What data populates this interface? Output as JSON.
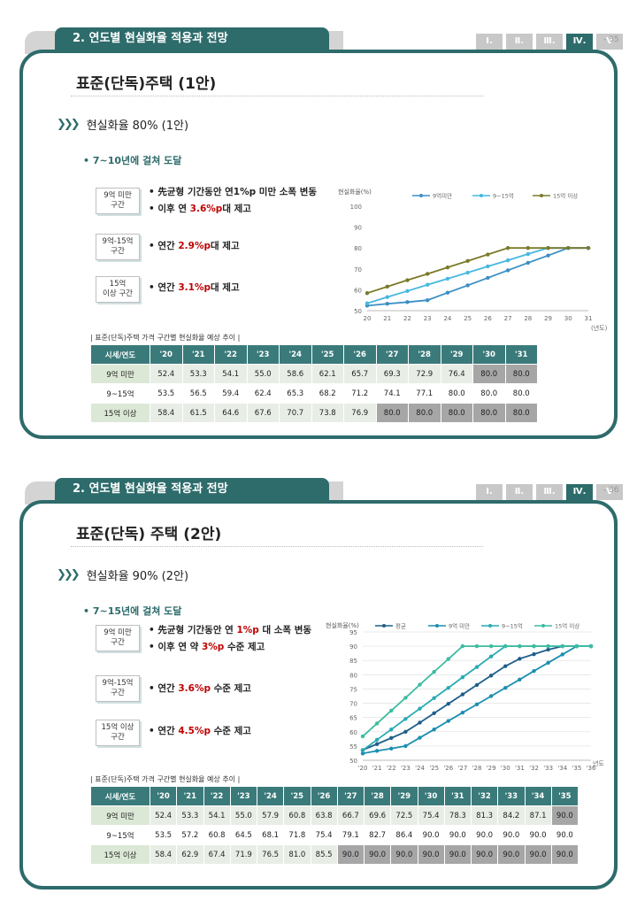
{
  "pages": [
    {
      "header": "2. 연도별 현실화율 적용과 전망",
      "roman_tabs": [
        "Ⅰ.",
        "Ⅱ.",
        "Ⅲ.",
        "Ⅳ.",
        "Ⅴ"
      ],
      "active_tab": 3,
      "page_number": "- 35",
      "title": "표준(단독)주택 (1안)",
      "subtitle": "현실화율 80% (1안)",
      "bullet": "• 7~10년에 걸쳐 도달",
      "groups": [
        {
          "tag": [
            "9억 미만",
            "구간"
          ],
          "lines": [
            [
              {
                "t": "• 先균형 기간동안 연1%p 미만 소폭 변동",
                "red": false
              }
            ],
            [
              {
                "t": "• 이후 연 ",
                "red": false
              },
              {
                "t": "3.6%p",
                "red": true
              },
              {
                "t": "대 제고",
                "red": false
              }
            ]
          ]
        },
        {
          "tag": [
            "9억-15억",
            "구간"
          ],
          "lines": [
            [
              {
                "t": "• 연간 ",
                "red": false
              },
              {
                "t": "2.9%p",
                "red": true
              },
              {
                "t": "대 제고",
                "red": false
              }
            ]
          ]
        },
        {
          "tag": [
            "15억",
            "이상 구간"
          ],
          "lines": [
            [
              {
                "t": "• 연간 ",
                "red": false
              },
              {
                "t": "3.1%p",
                "red": true
              },
              {
                "t": "대 제고",
                "red": false
              }
            ]
          ]
        }
      ],
      "table_caption": "| 표준(단독)주택 가격 구간별 현실화율 예상 추이 |",
      "table": {
        "header": [
          "시세/연도",
          "'20",
          "'21",
          "'22",
          "'23",
          "'24",
          "'25",
          "'26",
          "'27",
          "'28",
          "'29",
          "'30",
          "'31"
        ],
        "rows": [
          {
            "label": "9억 미만",
            "values": [
              "52.4",
              "53.3",
              "54.1",
              "55.0",
              "58.6",
              "62.1",
              "65.7",
              "69.3",
              "72.9",
              "76.4",
              "80.0",
              "80.0"
            ],
            "sat_from": 10
          },
          {
            "label": "9~15억",
            "values": [
              "53.5",
              "56.5",
              "59.4",
              "62.4",
              "65.3",
              "68.2",
              "71.2",
              "74.1",
              "77.1",
              "80.0",
              "80.0",
              "80.0"
            ],
            "sat_from": 9
          },
          {
            "label": "15억 이상",
            "values": [
              "58.4",
              "61.5",
              "64.6",
              "67.6",
              "70.7",
              "73.8",
              "76.9",
              "80.0",
              "80.0",
              "80.0",
              "80.0",
              "80.0"
            ],
            "sat_from": 7
          }
        ]
      },
      "chart_data": {
        "type": "line",
        "ylabel": "현실화율(%)",
        "xlabel": "(년도)",
        "x": [
          "20",
          "21",
          "22",
          "23",
          "24",
          "25",
          "26",
          "27",
          "28",
          "29",
          "30",
          "31"
        ],
        "ylim": [
          50,
          100
        ],
        "yticks": [
          50,
          60,
          70,
          80,
          90,
          100
        ],
        "legend_position": "top",
        "series": [
          {
            "name": "9억미만",
            "color": "#3b8fc4",
            "values": [
              52.4,
              53.3,
              54.1,
              55.0,
              58.6,
              62.1,
              65.7,
              69.3,
              72.9,
              76.4,
              80.0,
              80.0
            ]
          },
          {
            "name": "9~15억",
            "color": "#47b8e0",
            "values": [
              53.5,
              56.5,
              59.4,
              62.4,
              65.3,
              68.2,
              71.2,
              74.1,
              77.1,
              80.0,
              80.0,
              80.0
            ]
          },
          {
            "name": "15억 이상",
            "color": "#7a7a2a",
            "values": [
              58.4,
              61.5,
              64.6,
              67.6,
              70.7,
              73.8,
              76.9,
              80.0,
              80.0,
              80.0,
              80.0,
              80.0
            ]
          }
        ]
      }
    },
    {
      "header": "2. 연도별 현실화율 적용과 전망",
      "roman_tabs": [
        "Ⅰ.",
        "Ⅱ.",
        "Ⅲ.",
        "Ⅳ.",
        "Ⅴ"
      ],
      "active_tab": 3,
      "page_number": "- 36",
      "title": "표준(단독) 주택 (2안)",
      "subtitle": "현실화율 90% (2안)",
      "bullet": "• 7~15년에 걸쳐 도달",
      "groups": [
        {
          "tag": [
            "9억 미만",
            "구간"
          ],
          "lines": [
            [
              {
                "t": "• 先균형 기간동안 연 ",
                "red": false
              },
              {
                "t": "1%p",
                "red": true
              },
              {
                "t": " 대 소폭 변동",
                "red": false
              }
            ],
            [
              {
                "t": "• 이후 연 약 ",
                "red": false
              },
              {
                "t": "3%p",
                "red": true
              },
              {
                "t": " 수준 제고",
                "red": false
              }
            ]
          ]
        },
        {
          "tag": [
            "9억-15억",
            "구간"
          ],
          "lines": [
            [
              {
                "t": "• 연간 ",
                "red": false
              },
              {
                "t": "3.6%p",
                "red": true
              },
              {
                "t": " 수준 제고",
                "red": false
              }
            ]
          ]
        },
        {
          "tag": [
            "15억 이상",
            "구간"
          ],
          "lines": [
            [
              {
                "t": "• 연간 ",
                "red": false
              },
              {
                "t": "4.5%p",
                "red": true
              },
              {
                "t": " 수준 제고",
                "red": false
              }
            ]
          ]
        }
      ],
      "table_caption": "| 표준(단독)주택 가격 구간별 현실화율 예상 추이 |",
      "table": {
        "header": [
          "시세/연도",
          "'20",
          "'21",
          "'22",
          "'23",
          "'24",
          "'25",
          "'26",
          "'27",
          "'28",
          "'29",
          "'30",
          "'31",
          "'32",
          "'33",
          "'34",
          "'35"
        ],
        "rows": [
          {
            "label": "9억 미만",
            "values": [
              "52.4",
              "53.3",
              "54.1",
              "55.0",
              "57.9",
              "60.8",
              "63.8",
              "66.7",
              "69.6",
              "72.5",
              "75.4",
              "78.3",
              "81.3",
              "84.2",
              "87.1",
              "90.0"
            ],
            "sat_from": 15
          },
          {
            "label": "9~15억",
            "values": [
              "53.5",
              "57.2",
              "60.8",
              "64.5",
              "68.1",
              "71.8",
              "75.4",
              "79.1",
              "82.7",
              "86.4",
              "90.0",
              "90.0",
              "90.0",
              "90.0",
              "90.0",
              "90.0"
            ],
            "sat_from": 10
          },
          {
            "label": "15억 이상",
            "values": [
              "58.4",
              "62.9",
              "67.4",
              "71.9",
              "76.5",
              "81.0",
              "85.5",
              "90.0",
              "90.0",
              "90.0",
              "90.0",
              "90.0",
              "90.0",
              "90.0",
              "90.0",
              "90.0"
            ],
            "sat_from": 7
          }
        ]
      },
      "chart_data": {
        "type": "line",
        "ylabel": "현실화율(%)",
        "xlabel": "년도",
        "x": [
          "'20",
          "'21",
          "'22",
          "'23",
          "'24",
          "'25",
          "'26",
          "'27",
          "'28",
          "'29",
          "'30",
          "'31",
          "'32",
          "'33",
          "'34",
          "'35",
          "'36"
        ],
        "ylim": [
          50,
          95
        ],
        "yticks": [
          50,
          55,
          60,
          65,
          70,
          75,
          80,
          85,
          90,
          95
        ],
        "legend_position": "top",
        "series": [
          {
            "name": "평균",
            "color": "#1f5f8b",
            "values": [
              53.6,
              55.7,
              57.8,
              60.0,
              63.2,
              66.5,
              69.8,
              73.1,
              76.4,
              79.7,
              83.0,
              85.6,
              87.2,
              88.8,
              90.0,
              90.0,
              90.0
            ]
          },
          {
            "name": "9억 미만",
            "color": "#1b8fb0",
            "values": [
              52.4,
              53.3,
              54.1,
              55.0,
              57.9,
              60.8,
              63.8,
              66.7,
              69.6,
              72.5,
              75.4,
              78.3,
              81.3,
              84.2,
              87.1,
              90.0,
              90.0
            ]
          },
          {
            "name": "9~15억",
            "color": "#2aaab4",
            "values": [
              53.5,
              57.2,
              60.8,
              64.5,
              68.1,
              71.8,
              75.4,
              79.1,
              82.7,
              86.4,
              90.0,
              90.0,
              90.0,
              90.0,
              90.0,
              90.0,
              90.0
            ]
          },
          {
            "name": "15억 이상",
            "color": "#3cbca0",
            "values": [
              58.4,
              62.9,
              67.4,
              71.9,
              76.5,
              81.0,
              85.5,
              90.0,
              90.0,
              90.0,
              90.0,
              90.0,
              90.0,
              90.0,
              90.0,
              90.0,
              90.0
            ]
          }
        ]
      }
    }
  ]
}
